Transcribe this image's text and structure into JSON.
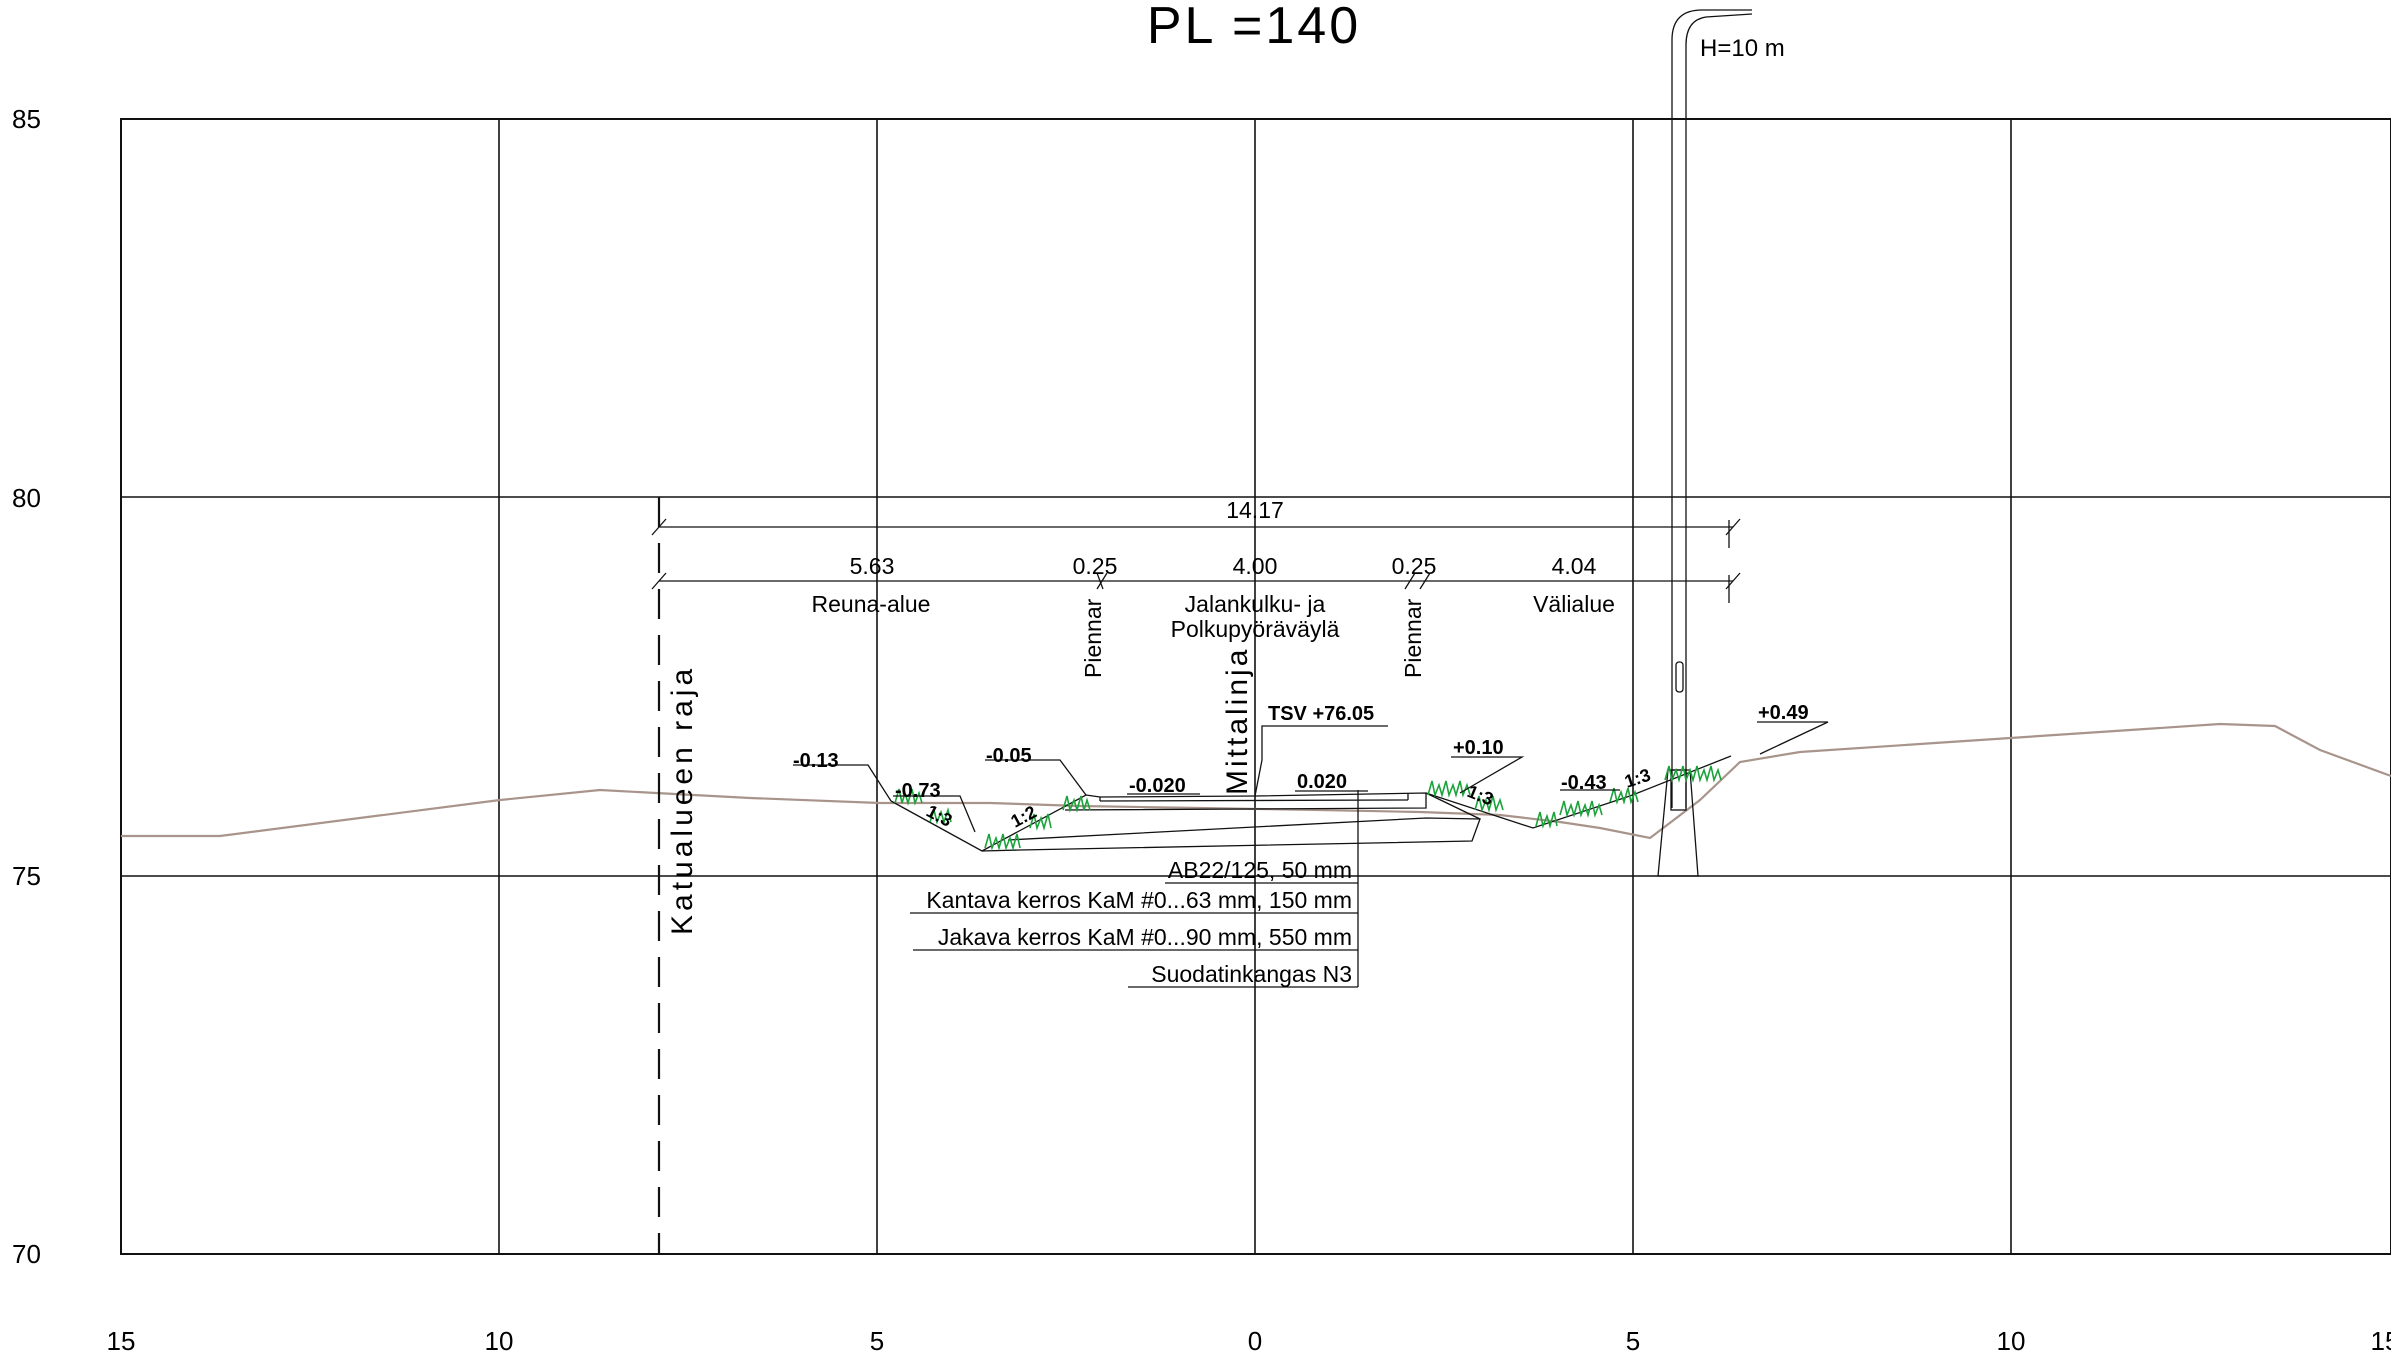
{
  "title": "PL =140",
  "y_axis_labels": [
    "85",
    "80",
    "75",
    "70"
  ],
  "x_axis_labels": [
    "15",
    "10",
    "5",
    "0",
    "5",
    "10",
    "15"
  ],
  "dimensions": {
    "total": "14.17",
    "reuna": "5.63",
    "piennar_left": "0.25",
    "path": "4.00",
    "piennar_right": "0.25",
    "valialue": "4.04"
  },
  "zones": {
    "reuna_alue": "Reuna-alue",
    "path_line1": "Jalankulku- ja",
    "path_line2": "Polkupyöräväylä",
    "valialue": "Välialue",
    "piennar_left": "Piennar",
    "piennar_right": "Piennar"
  },
  "vertical_labels": {
    "katualue": "Katualueen raja",
    "mittalinja": "Mittalinja"
  },
  "pole_label": "H=10 m",
  "tsv_label": "TSV +76.05",
  "elevations": {
    "e1": "-0.13",
    "e2": "-0.73",
    "e3": "-0.05",
    "e4": "-0.020",
    "e5": "0.020",
    "e6": "+0.10",
    "e7": "-0.43",
    "e8": "+0.49"
  },
  "slopes": {
    "s1": "1:3",
    "s2": "1:2",
    "s3": "1:3",
    "s4": "1:3"
  },
  "layers": [
    "AB22/125, 50 mm",
    "Kantava kerros KaM #0...63 mm, 150 mm",
    "Jakava kerros KaM #0...90 mm, 550 mm",
    "Suodatinkangas N3"
  ],
  "colors": {
    "ground_line": "#a8948a",
    "grass": "#1aa33a",
    "lines": "#111111"
  }
}
